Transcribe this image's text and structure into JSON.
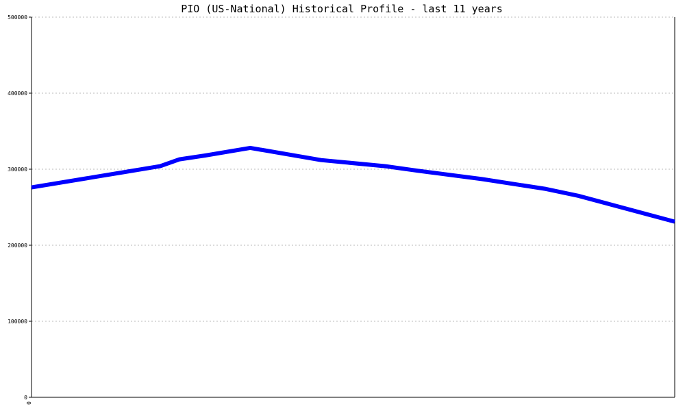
{
  "chart_data": {
    "type": "line",
    "title": "PIO (US-National) Historical Profile - last 11 years",
    "xlabel": "",
    "ylabel": "",
    "x_tick_labels": [
      "0"
    ],
    "y_tick_labels": [
      "0",
      "100000",
      "200000",
      "300000",
      "400000",
      "500000"
    ],
    "ylim": [
      0,
      500000
    ],
    "grid": true,
    "series": [
      {
        "color": "#0000ff",
        "points": [
          {
            "x": 0,
            "y": 276000
          },
          {
            "x": 1,
            "y": 290000
          },
          {
            "x": 2,
            "y": 304000
          },
          {
            "x": 2.3,
            "y": 313000
          },
          {
            "x": 2.7,
            "y": 318000
          },
          {
            "x": 3.4,
            "y": 328000
          },
          {
            "x": 4.5,
            "y": 312000
          },
          {
            "x": 5.5,
            "y": 304000
          },
          {
            "x": 6.0,
            "y": 298000
          },
          {
            "x": 7.0,
            "y": 287000
          },
          {
            "x": 8.0,
            "y": 274000
          },
          {
            "x": 8.5,
            "y": 265000
          },
          {
            "x": 10,
            "y": 231000
          }
        ]
      }
    ]
  }
}
